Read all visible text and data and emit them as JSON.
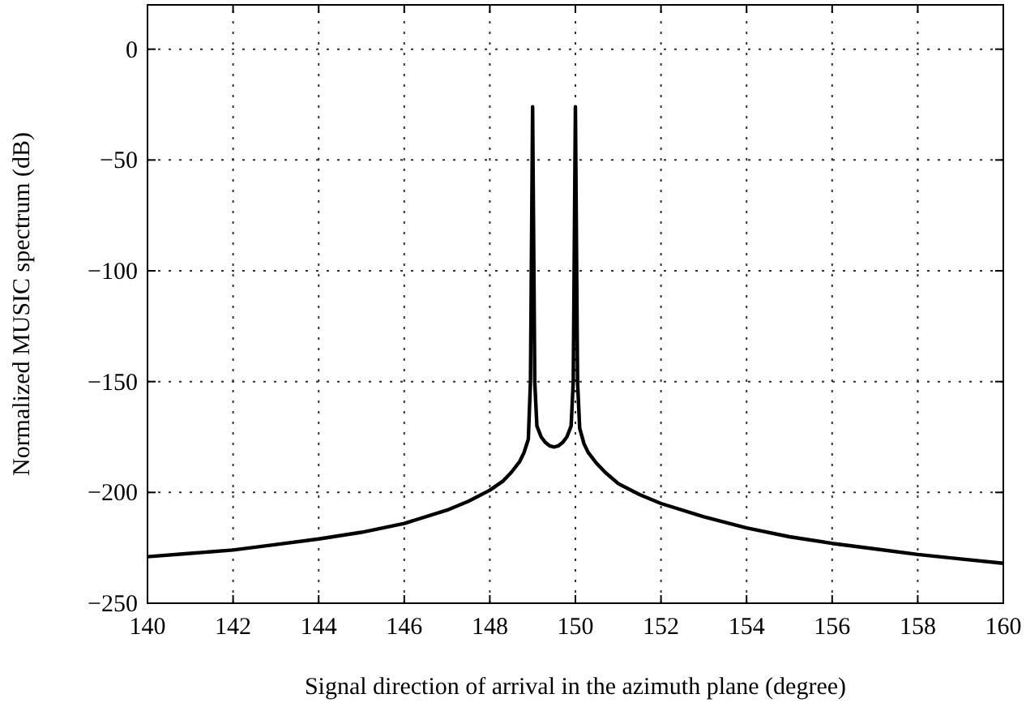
{
  "chart_data": {
    "type": "line",
    "xlabel": "Signal direction of arrival in the azimuth plane (degree)",
    "ylabel": "Normalized MUSIC spectrum (dB)",
    "x": [
      140,
      141,
      142,
      143,
      144,
      145,
      146,
      147,
      147.5,
      148,
      148.3,
      148.5,
      148.7,
      148.8,
      148.9,
      148.95,
      149,
      149.05,
      149.1,
      149.2,
      149.3,
      149.4,
      149.5,
      149.6,
      149.7,
      149.8,
      149.9,
      149.95,
      150,
      150.05,
      150.1,
      150.2,
      150.3,
      150.5,
      150.7,
      151,
      151.5,
      152,
      153,
      154,
      155,
      156,
      157,
      158,
      159,
      160
    ],
    "series": [
      {
        "color": "#000000",
        "values": [
          -229,
          -227.5,
          -226,
          -223.5,
          -221,
          -218,
          -214,
          -208,
          -204,
          -199,
          -195,
          -191,
          -186,
          -182,
          -176,
          -150,
          -26,
          -150,
          -170,
          -175,
          -177.5,
          -179,
          -179.5,
          -179,
          -177.5,
          -175,
          -170,
          -150,
          -26,
          -150,
          -171,
          -178,
          -182,
          -187,
          -191,
          -196,
          -201,
          -205,
          -211,
          -216,
          -220,
          -223,
          -225.5,
          -228,
          -230,
          -232
        ]
      }
    ],
    "xlim": [
      140,
      160
    ],
    "ylim": [
      -250,
      20
    ],
    "xticks": [
      140,
      142,
      144,
      146,
      148,
      150,
      152,
      154,
      156,
      158,
      160
    ],
    "yticks": [
      -250,
      -200,
      -150,
      -100,
      -50,
      0
    ],
    "grid": true,
    "line_style": "solid",
    "marker": "none"
  }
}
